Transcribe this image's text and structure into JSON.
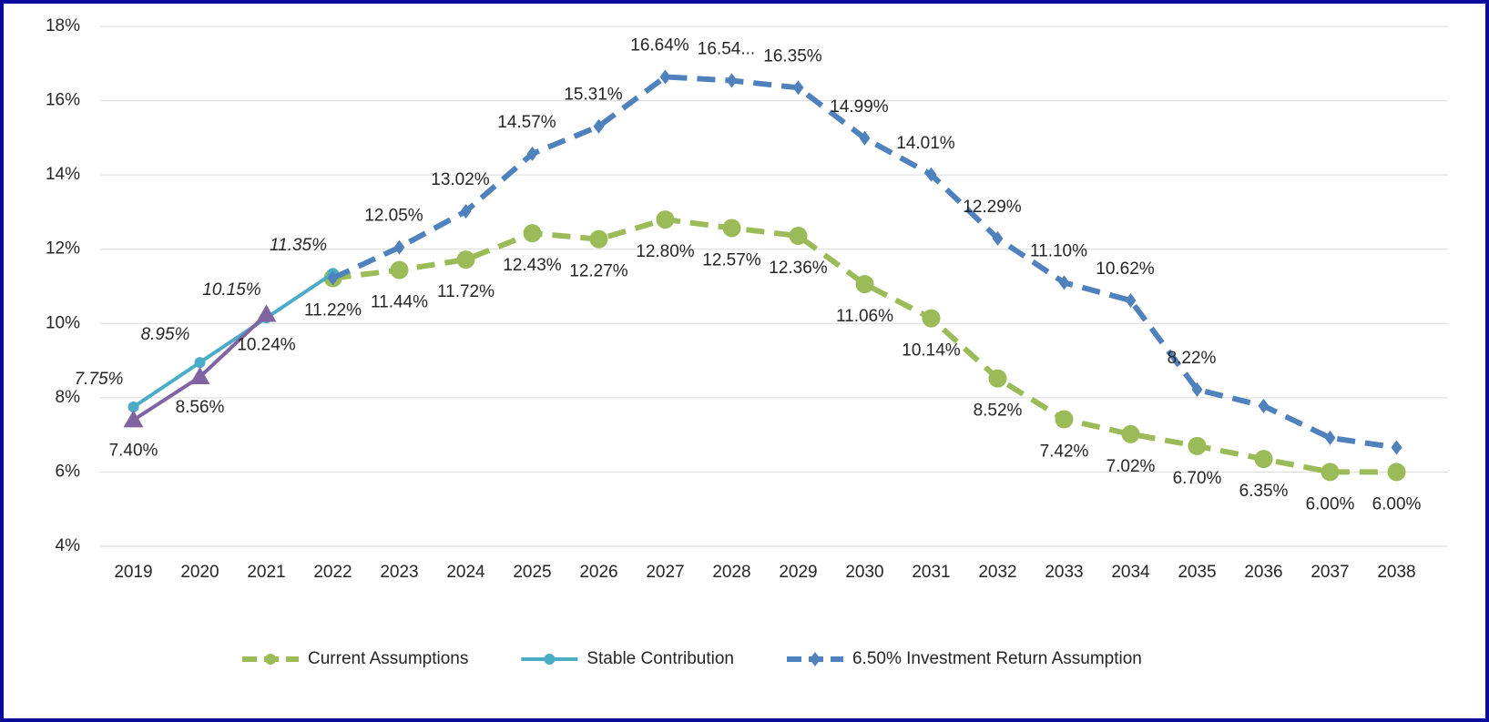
{
  "chart_data": {
    "type": "line",
    "categories": [
      "2019",
      "2020",
      "2021",
      "2022",
      "2023",
      "2024",
      "2025",
      "2026",
      "2027",
      "2028",
      "2029",
      "2030",
      "2031",
      "2032",
      "2033",
      "2034",
      "2035",
      "2036",
      "2037",
      "2038"
    ],
    "ylim": [
      4,
      18
    ],
    "yticks": [
      {
        "value": 4,
        "label": "4%"
      },
      {
        "value": 6,
        "label": "6%"
      },
      {
        "value": 8,
        "label": "8%"
      },
      {
        "value": 10,
        "label": "10%"
      },
      {
        "value": 12,
        "label": "12%"
      },
      {
        "value": 14,
        "label": "14%"
      },
      {
        "value": 16,
        "label": "16%"
      },
      {
        "value": 18,
        "label": "18%"
      }
    ],
    "grid": true,
    "legend": "bottom",
    "series": [
      {
        "name": "Current Assumptions",
        "color": "#9bbb59",
        "dashed": true,
        "marker": "circle",
        "values": [
          null,
          null,
          null,
          11.22,
          11.44,
          11.72,
          12.43,
          12.27,
          12.8,
          12.57,
          12.36,
          11.06,
          10.14,
          8.52,
          7.42,
          7.02,
          6.7,
          6.35,
          6.0,
          6.0
        ],
        "value_labels": [
          null,
          null,
          null,
          "11.22%",
          "11.44%",
          "11.72%",
          "12.43%",
          "12.27%",
          "12.80%",
          "12.57%",
          "12.36%",
          "11.06%",
          "10.14%",
          "8.52%",
          "7.42%",
          "7.02%",
          "6.70%",
          "6.35%",
          "6.00%",
          "6.00%"
        ]
      },
      {
        "name": "Stable Contribution",
        "color": "#4bacc6",
        "dashed": false,
        "marker": "dot",
        "label_style": "italic",
        "values": [
          7.75,
          8.95,
          10.15,
          11.35,
          null,
          null,
          null,
          null,
          null,
          null,
          null,
          null,
          null,
          null,
          null,
          null,
          null,
          null,
          null,
          null
        ],
        "value_labels": [
          "7.75%",
          "8.95%",
          "10.15%",
          "11.35%",
          null,
          null,
          null,
          null,
          null,
          null,
          null,
          null,
          null,
          null,
          null,
          null,
          null,
          null,
          null,
          null
        ]
      },
      {
        "name": "6.50% Investment Return Assumption",
        "color": "#4f81bd",
        "dashed": true,
        "marker": "diamond",
        "values": [
          null,
          null,
          null,
          11.22,
          12.05,
          13.02,
          14.57,
          15.31,
          16.64,
          16.54,
          16.35,
          14.99,
          14.01,
          12.29,
          11.1,
          10.62,
          8.22,
          7.78,
          6.92,
          6.66
        ],
        "value_labels": [
          null,
          null,
          null,
          null,
          "12.05%",
          "13.02%",
          "14.57%",
          "15.31%",
          "16.64%",
          "16.54...",
          "16.35%",
          "14.99%",
          "14.01%",
          "12.29%",
          "11.10%",
          "10.62%",
          "8.22%",
          null,
          null,
          null
        ]
      },
      {
        "color": "#8064a2",
        "dashed": false,
        "marker": "triangle",
        "values": [
          7.4,
          8.56,
          10.24,
          null,
          null,
          null,
          null,
          null,
          null,
          null,
          null,
          null,
          null,
          null,
          null,
          null,
          null,
          null,
          null,
          null
        ],
        "value_labels": [
          "7.40%",
          "8.56%",
          "10.24%",
          null,
          null,
          null,
          null,
          null,
          null,
          null,
          null,
          null,
          null,
          null,
          null,
          null,
          null,
          null,
          null,
          null
        ]
      }
    ]
  }
}
